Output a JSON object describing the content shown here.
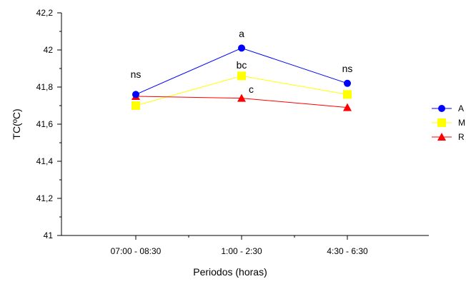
{
  "chart_data": {
    "type": "line",
    "title": "",
    "xlabel": "Periodos (horas)",
    "ylabel": "TC(ºC)",
    "categories": [
      "07:00 - 08:30",
      "1:00 - 2:30",
      "4:30 - 6:30"
    ],
    "ylim": [
      41,
      42.2
    ],
    "yticks": [
      41,
      41.2,
      41.4,
      41.6,
      41.8,
      42,
      42.2
    ],
    "ytick_labels": [
      "41",
      "41,2",
      "41,4",
      "41,6",
      "41,8",
      "42",
      "42,2"
    ],
    "grid": false,
    "legend_position": "right",
    "series": [
      {
        "name": "A",
        "color": "#0000ff",
        "marker": "circle",
        "values": [
          41.76,
          42.01,
          41.82
        ]
      },
      {
        "name": "M",
        "color": "#ffff00",
        "marker": "square",
        "values": [
          41.7,
          41.86,
          41.76
        ]
      },
      {
        "name": "R",
        "color": "#ff0000",
        "marker": "triangle",
        "values": [
          41.75,
          41.74,
          41.69
        ]
      }
    ],
    "annotations": [
      {
        "text": "ns",
        "category_index": 0,
        "y": 41.85
      },
      {
        "text": "a",
        "category_index": 1,
        "y": 42.07
      },
      {
        "text": "bc",
        "category_index": 1,
        "y": 41.9
      },
      {
        "text": "c",
        "category_index": 1,
        "y": 41.77
      },
      {
        "text": "ns",
        "category_index": 2,
        "y": 41.88
      }
    ]
  }
}
